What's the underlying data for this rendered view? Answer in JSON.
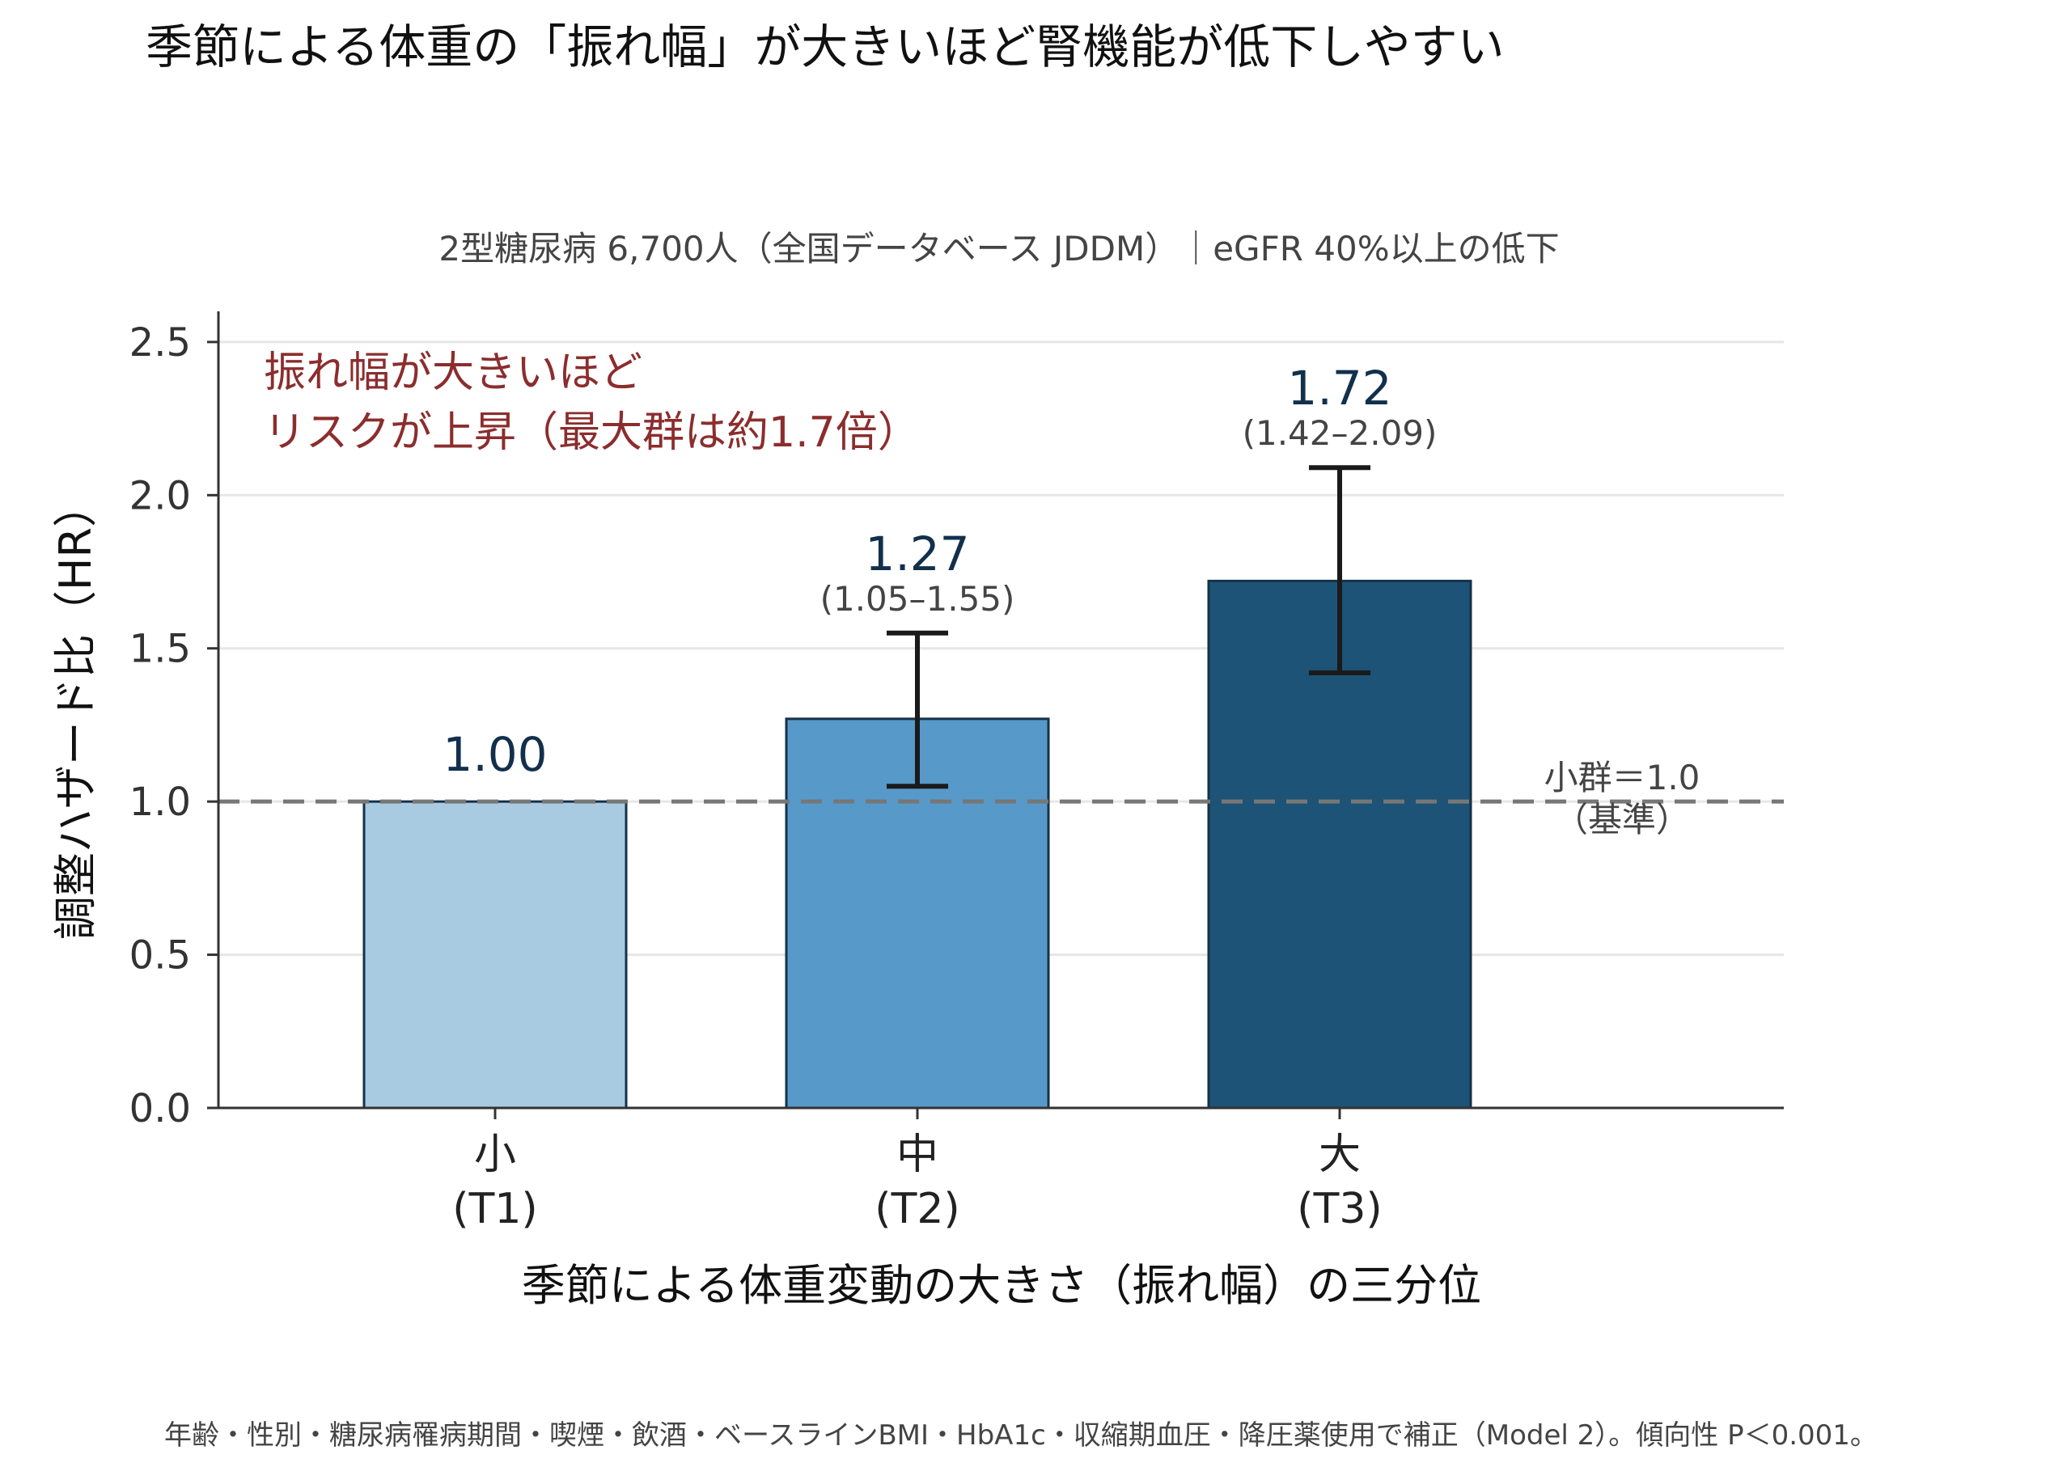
{
  "chart_data": {
    "type": "bar",
    "title": "季節による体重の「振れ幅」が大きいほど腎機能が低下しやすい",
    "subtitle": "2型糖尿病 6,700人（全国データベース JDDM）｜eGFR 40%以上の低下",
    "ylabel": "調整ハザード比（HR）",
    "xlabel": "季節による体重変動の大きさ（振れ幅）の三分位",
    "ylim": [
      0,
      2.6
    ],
    "yticks": [
      "0.0",
      "0.5",
      "1.0",
      "1.5",
      "2.0",
      "2.5"
    ],
    "grid": true,
    "categories": [
      {
        "line1": "小",
        "line2": "(T1)"
      },
      {
        "line1": "中",
        "line2": "(T2)"
      },
      {
        "line1": "大",
        "line2": "(T3)"
      }
    ],
    "values": [
      1.0,
      1.27,
      1.72
    ],
    "value_labels": [
      "1.00",
      "1.27",
      "1.72"
    ],
    "ci_low": [
      null,
      1.05,
      1.42
    ],
    "ci_high": [
      null,
      1.55,
      2.09
    ],
    "ci_labels": [
      "",
      "(1.05–1.55)",
      "(1.42–2.09)"
    ],
    "bar_colors": [
      "#a9cbe2",
      "#5799c8",
      "#1c5376"
    ],
    "reference": {
      "value": 1.0,
      "label_line1": "小群＝1.0",
      "label_line2": "（基準）",
      "color": "#777777"
    },
    "annotation": {
      "line1": "振れ幅が大きいほど",
      "line2": "リスクが上昇（最大群は約1.7倍）",
      "color": "#8c2d2d"
    },
    "footnote": "年齢・性別・糖尿病罹病期間・喫煙・飲酒・ベースラインBMI・HbA1c・収縮期血圧・降圧薬使用で補正（Model 2）。傾向性 P＜0.001。"
  }
}
